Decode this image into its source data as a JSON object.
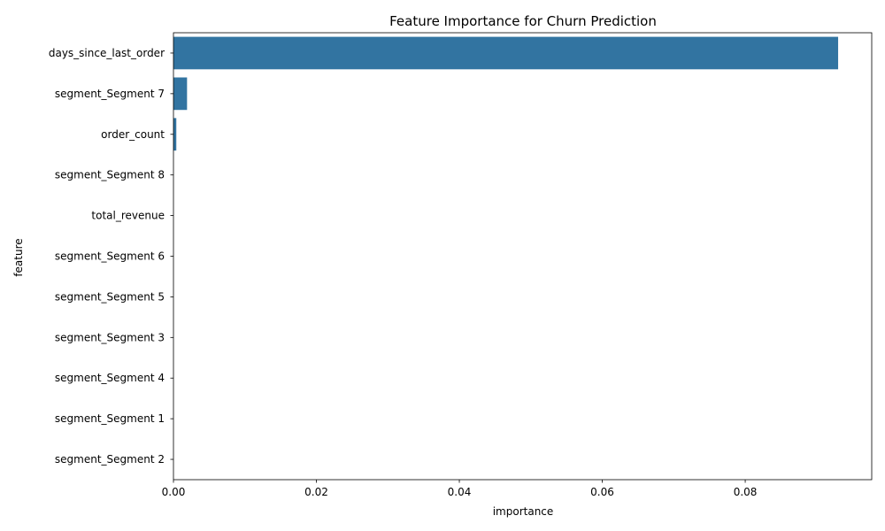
{
  "chart_data": {
    "type": "bar",
    "orientation": "horizontal",
    "title": "Feature Importance for Churn Prediction",
    "xlabel": "importance",
    "ylabel": "feature",
    "categories": [
      "days_since_last_order",
      "segment_Segment 7",
      "order_count",
      "segment_Segment 8",
      "total_revenue",
      "segment_Segment 6",
      "segment_Segment 5",
      "segment_Segment 3",
      "segment_Segment 4",
      "segment_Segment 1",
      "segment_Segment 2"
    ],
    "values": [
      0.093,
      0.0019,
      0.0004,
      0,
      0,
      0,
      0,
      0,
      0,
      0,
      0
    ],
    "xlim": [
      0,
      0.0977
    ],
    "xticks": [
      0.0,
      0.02,
      0.04,
      0.06,
      0.08
    ],
    "xtick_labels": [
      "0.00",
      "0.02",
      "0.04",
      "0.06",
      "0.08"
    ],
    "bar_color": "#3274a1",
    "grid": false,
    "legend": "none"
  }
}
